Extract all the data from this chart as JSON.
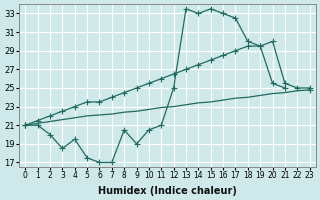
{
  "xlabel": "Humidex (Indice chaleur)",
  "bg_color": "#cfe9ea",
  "grid_color": "#ffffff",
  "line_color": "#1f6b5e",
  "xlim": [
    -0.5,
    23.5
  ],
  "ylim": [
    16.5,
    34
  ],
  "xticks": [
    0,
    1,
    2,
    3,
    4,
    5,
    6,
    7,
    8,
    9,
    10,
    11,
    12,
    13,
    14,
    15,
    16,
    17,
    18,
    19,
    20,
    21,
    22,
    23
  ],
  "yticks": [
    17,
    19,
    21,
    23,
    25,
    27,
    29,
    31,
    33
  ],
  "curve_x": [
    0,
    1,
    2,
    3,
    4,
    5,
    6,
    7,
    8,
    9,
    10,
    11,
    12,
    13,
    14,
    15,
    16,
    17,
    18,
    19,
    20,
    21
  ],
  "curve_y": [
    21,
    21,
    20,
    18.5,
    19.5,
    17.5,
    17,
    17,
    20.5,
    19,
    20.5,
    21,
    25,
    33.5,
    33,
    33.5,
    33,
    32.5,
    30,
    29.5,
    25.5,
    25
  ],
  "upper_x": [
    0,
    1,
    2,
    3,
    4,
    5,
    6,
    7,
    8,
    9,
    10,
    11,
    12,
    13,
    14,
    15,
    16,
    17,
    18,
    19,
    20,
    21,
    22,
    23
  ],
  "upper_y": [
    21,
    21.5,
    22,
    22.5,
    23,
    23.5,
    23.5,
    24,
    24.5,
    25,
    25.5,
    26,
    26.5,
    27,
    27.5,
    28,
    28.5,
    29,
    29.5,
    29.5,
    30,
    25.5,
    25,
    25
  ],
  "lower_x": [
    0,
    1,
    2,
    3,
    4,
    5,
    6,
    7,
    8,
    9,
    10,
    11,
    12,
    13,
    14,
    15,
    16,
    17,
    18,
    19,
    20,
    21,
    22,
    23
  ],
  "lower_y": [
    21,
    21.2,
    21.4,
    21.6,
    21.8,
    22,
    22.1,
    22.2,
    22.4,
    22.5,
    22.7,
    22.9,
    23,
    23.2,
    23.4,
    23.5,
    23.7,
    23.9,
    24,
    24.2,
    24.4,
    24.5,
    24.7,
    24.8
  ]
}
